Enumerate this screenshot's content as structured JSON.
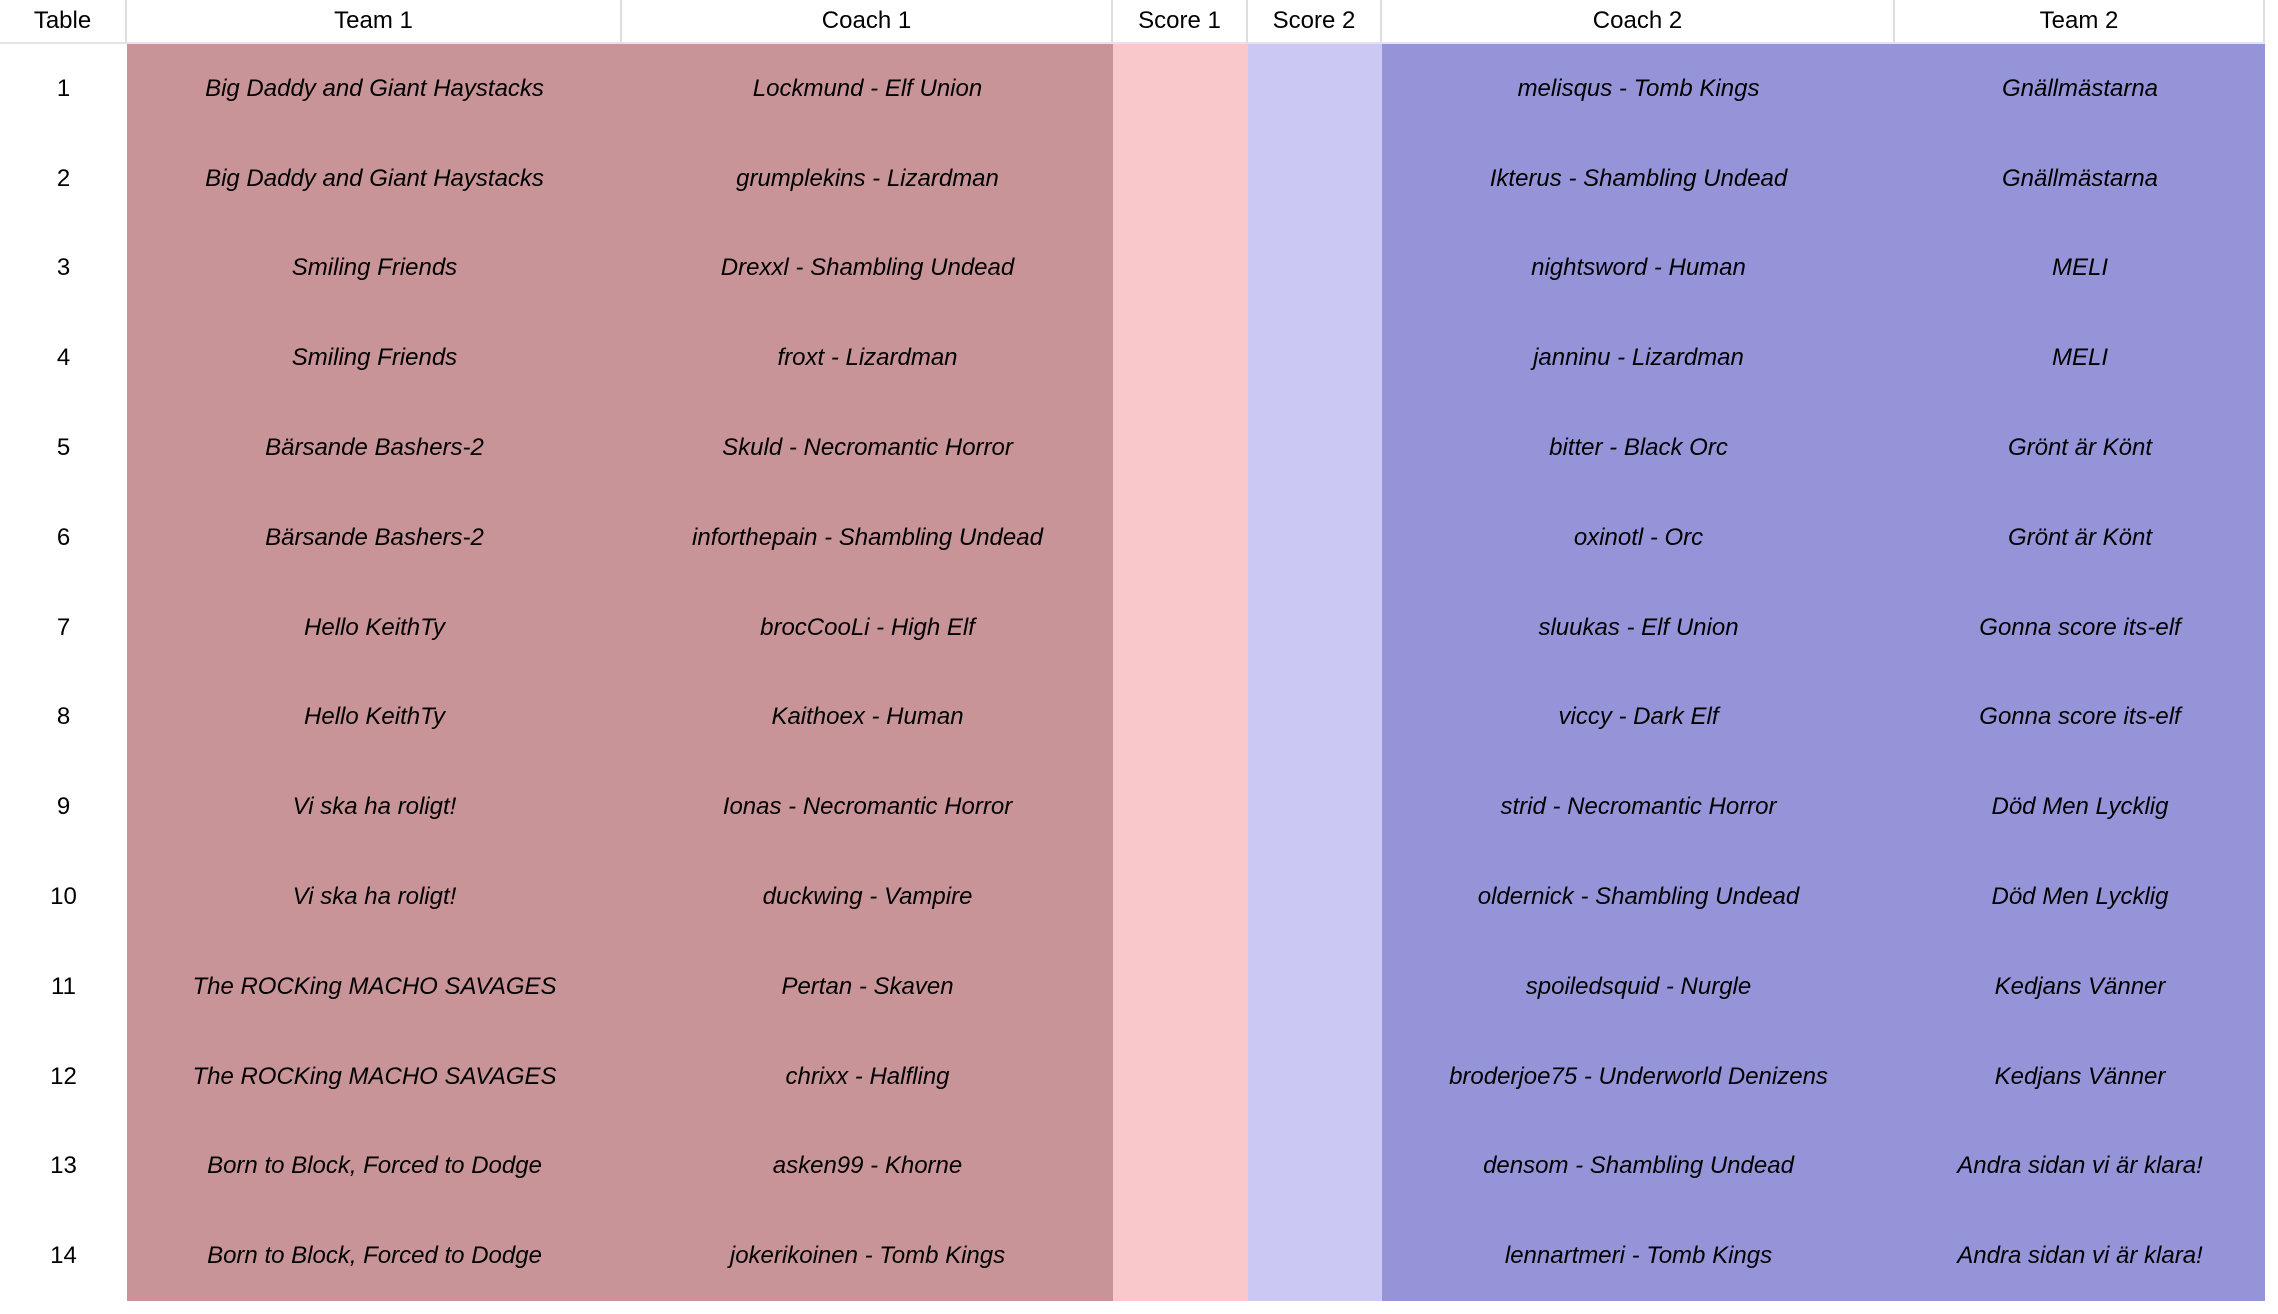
{
  "table": {
    "columns": [
      {
        "key": "table",
        "label": "Table"
      },
      {
        "key": "team1",
        "label": "Team 1"
      },
      {
        "key": "coach1",
        "label": "Coach 1"
      },
      {
        "key": "score1",
        "label": "Score 1"
      },
      {
        "key": "score2",
        "label": "Score 2"
      },
      {
        "key": "coach2",
        "label": "Coach 2"
      },
      {
        "key": "team2",
        "label": "Team 2"
      }
    ],
    "rows": [
      {
        "table": "1",
        "team1": "Big Daddy and Giant Haystacks",
        "coach1": "Lockmund - Elf Union",
        "score1": "",
        "score2": "",
        "coach2": "melisqus - Tomb Kings",
        "team2": "Gnällmästarna"
      },
      {
        "table": "2",
        "team1": "Big Daddy and Giant Haystacks",
        "coach1": "grumplekins - Lizardman",
        "score1": "",
        "score2": "",
        "coach2": "Ikterus - Shambling Undead",
        "team2": "Gnällmästarna"
      },
      {
        "table": "3",
        "team1": "Smiling Friends",
        "coach1": "Drexxl - Shambling Undead",
        "score1": "",
        "score2": "",
        "coach2": "nightsword - Human",
        "team2": "MELI"
      },
      {
        "table": "4",
        "team1": "Smiling Friends",
        "coach1": "froxt - Lizardman",
        "score1": "",
        "score2": "",
        "coach2": "janninu - Lizardman",
        "team2": "MELI"
      },
      {
        "table": "5",
        "team1": "Bärsande Bashers-2",
        "coach1": "Skuld - Necromantic Horror",
        "score1": "",
        "score2": "",
        "coach2": "bitter - Black Orc",
        "team2": "Grönt är Könt"
      },
      {
        "table": "6",
        "team1": "Bärsande Bashers-2",
        "coach1": "inforthepain - Shambling Undead",
        "score1": "",
        "score2": "",
        "coach2": "oxinotl - Orc",
        "team2": "Grönt är Könt"
      },
      {
        "table": "7",
        "team1": "Hello KeithTy",
        "coach1": "brocCooLi - High Elf",
        "score1": "",
        "score2": "",
        "coach2": "sluukas - Elf Union",
        "team2": "Gonna score its-elf"
      },
      {
        "table": "8",
        "team1": "Hello KeithTy",
        "coach1": "Kaithoex - Human",
        "score1": "",
        "score2": "",
        "coach2": "viccy - Dark Elf",
        "team2": "Gonna score its-elf"
      },
      {
        "table": "9",
        "team1": "Vi ska ha roligt!",
        "coach1": "Ionas - Necromantic Horror",
        "score1": "",
        "score2": "",
        "coach2": "strid - Necromantic Horror",
        "team2": "Död Men Lycklig"
      },
      {
        "table": "10",
        "team1": "Vi ska ha roligt!",
        "coach1": "duckwing - Vampire",
        "score1": "",
        "score2": "",
        "coach2": "oldernick - Shambling Undead",
        "team2": "Död Men Lycklig"
      },
      {
        "table": "11",
        "team1": "The ROCKing MACHO SAVAGES",
        "coach1": "Pertan - Skaven",
        "score1": "",
        "score2": "",
        "coach2": "spoiledsquid - Nurgle",
        "team2": "Kedjans Vänner"
      },
      {
        "table": "12",
        "team1": "The ROCKing MACHO SAVAGES",
        "coach1": "chrixx - Halfling",
        "score1": "",
        "score2": "",
        "coach2": "broderjoe75 - Underworld Denizens",
        "team2": "Kedjans Vänner"
      },
      {
        "table": "13",
        "team1": "Born to Block, Forced to Dodge",
        "coach1": "asken99 - Khorne",
        "score1": "",
        "score2": "",
        "coach2": "densom - Shambling Undead",
        "team2": "Andra sidan vi är klara!"
      },
      {
        "table": "14",
        "team1": "Born to Block, Forced to Dodge",
        "coach1": "jokerikoinen - Tomb Kings",
        "score1": "",
        "score2": "",
        "coach2": "lennartmeri - Tomb Kings",
        "team2": "Andra sidan vi är klara!"
      }
    ]
  },
  "colors": {
    "team1_side_bg": "#c89498",
    "score1_bg": "#f9c8ca",
    "score2_bg": "#cbc8f3",
    "team2_side_bg": "#9694d9",
    "header_bg": "#ffffff",
    "header_border": "#e0dee3",
    "text": "#000000"
  }
}
